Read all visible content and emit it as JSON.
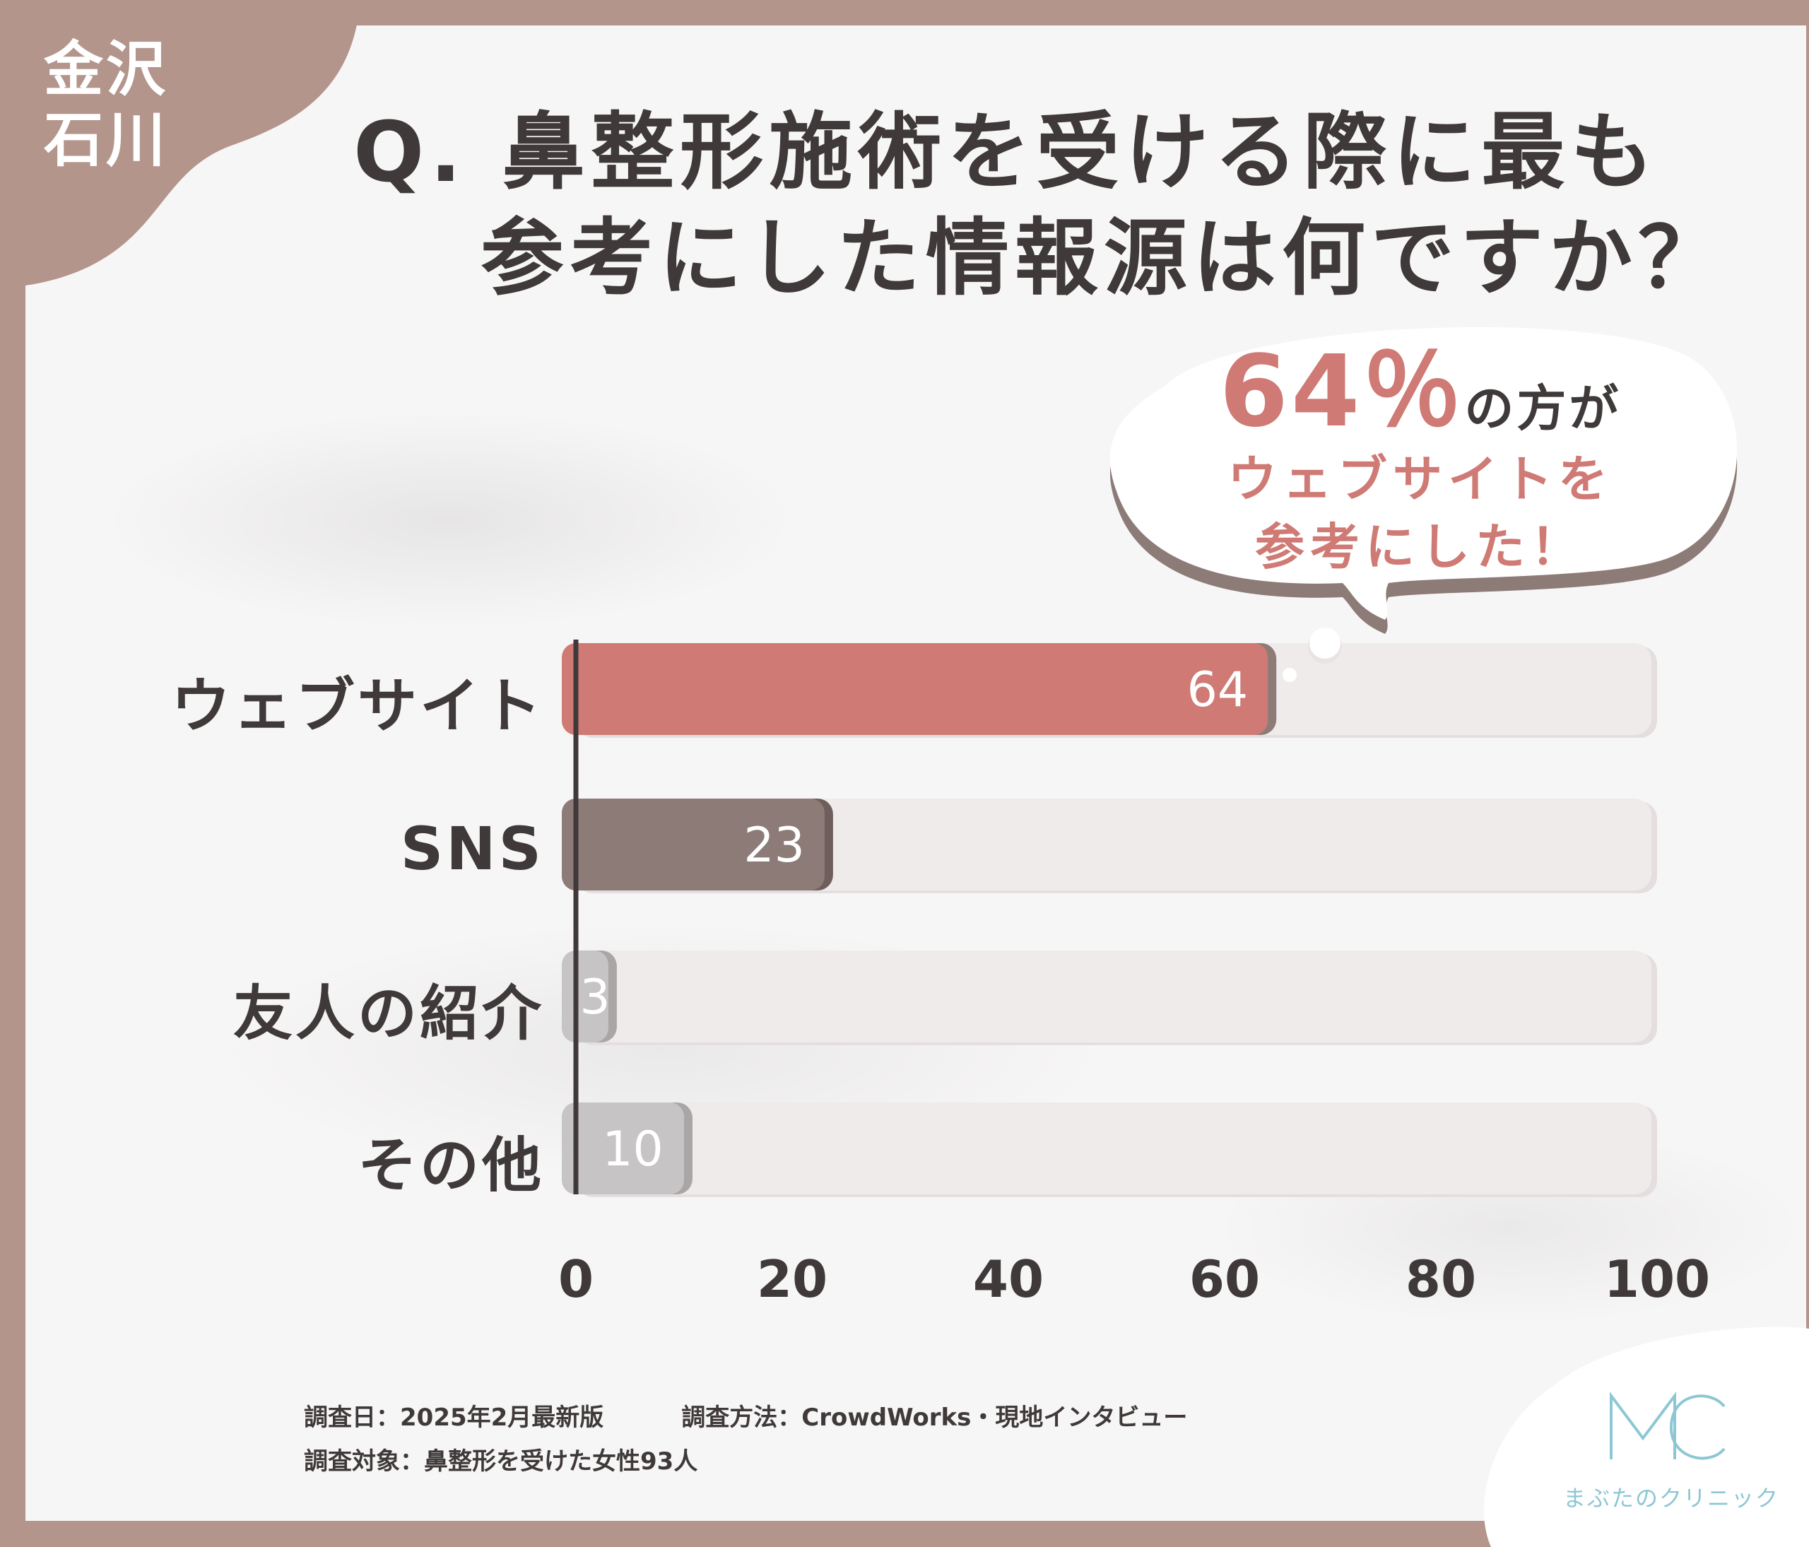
{
  "region": {
    "line1": "金沢",
    "line2": "石川"
  },
  "title": {
    "line1": "Q. 鼻整形施術を受ける際に最も",
    "line2": "参考にした情報源は何ですか？"
  },
  "callout": {
    "percent": "64％",
    "tail": "の方が",
    "line2": "ウェブサイトを",
    "line3": "参考にした！"
  },
  "chart_data": {
    "type": "bar",
    "orientation": "horizontal",
    "title": "",
    "categories": [
      "ウェブサイト",
      "SNS",
      "友人の紹介",
      "その他"
    ],
    "values": [
      64,
      23,
      3,
      10
    ],
    "value_labels": [
      "64",
      "23",
      "3",
      "10"
    ],
    "xlim": [
      0,
      100
    ],
    "xticks": [
      "0",
      "20",
      "40",
      "60",
      "80",
      "100"
    ],
    "grid": false,
    "legend": "none",
    "bar_colors": [
      "#cf7a74",
      "#8d7b78",
      "#c6c4c4",
      "#c6c4c4"
    ],
    "track_color": "#efebea"
  },
  "footer": {
    "date": "調査日：2025年2月最新版",
    "method": "調査方法：CrowdWorks・現地インタビュー",
    "target": "調査対象：鼻整形を受けた女性93人"
  },
  "logo": {
    "mark": "MC",
    "name": "まぶたのクリニック"
  },
  "colors": {
    "frame": "#b3958c",
    "accent": "#cf7a74",
    "text": "#3f3a39",
    "logo": "#8ec7d4"
  }
}
